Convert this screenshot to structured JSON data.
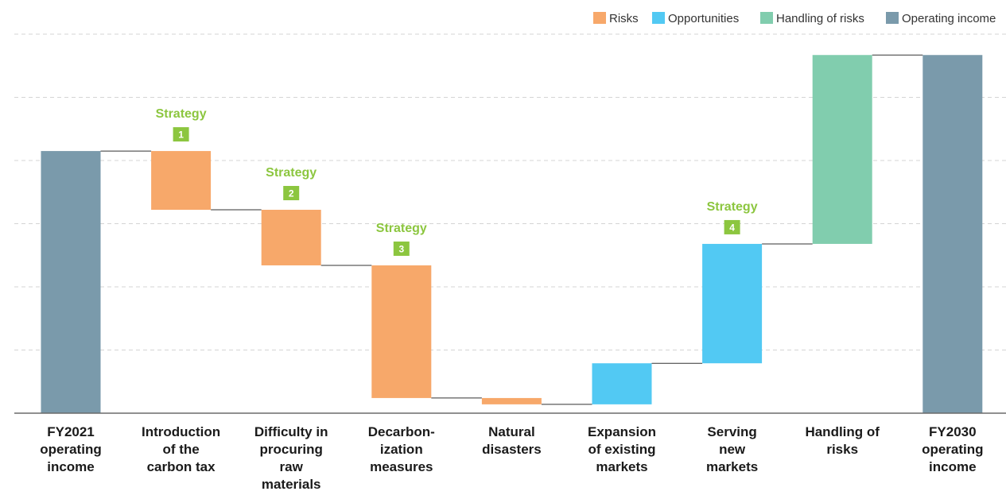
{
  "chart_data": {
    "type": "bar",
    "subtype": "waterfall",
    "categories": [
      [
        "FY2021",
        "operating",
        "income"
      ],
      [
        "Introduction",
        "of the",
        "carbon tax"
      ],
      [
        "Difficulty in",
        "procuring",
        "raw",
        "materials"
      ],
      [
        "Decarbon-",
        "ization",
        "measures"
      ],
      [
        "Natural",
        "disasters"
      ],
      [
        "Expansion",
        "of existing",
        "markets"
      ],
      [
        "Serving",
        "new",
        "markets"
      ],
      [
        "Handling of",
        "risks"
      ],
      [
        "FY2030",
        "operating",
        "income"
      ]
    ],
    "bars": [
      {
        "kind": "Operating income",
        "start": 0,
        "end": 41.5
      },
      {
        "kind": "Risks",
        "start": 41.5,
        "end": 32.2,
        "strategy": "1"
      },
      {
        "kind": "Risks",
        "start": 32.2,
        "end": 23.4,
        "strategy": "2"
      },
      {
        "kind": "Risks",
        "start": 23.4,
        "end": 2.4,
        "strategy": "3"
      },
      {
        "kind": "Risks",
        "start": 2.4,
        "end": 1.4
      },
      {
        "kind": "Opportunities",
        "start": 1.4,
        "end": 7.9
      },
      {
        "kind": "Opportunities",
        "start": 7.9,
        "end": 26.8,
        "strategy": "4"
      },
      {
        "kind": "Handling of risks",
        "start": 26.8,
        "end": 56.7
      },
      {
        "kind": "Operating income",
        "start": 0,
        "end": 56.7
      }
    ],
    "strategy_label": "Strategy",
    "legend": [
      {
        "name": "Risks",
        "color": "#f7a86a"
      },
      {
        "name": "Opportunities",
        "color": "#52c9f3"
      },
      {
        "name": "Handling of risks",
        "color": "#81cdae"
      },
      {
        "name": "Operating income",
        "color": "#7a9aab"
      }
    ],
    "legend_position": "top-right",
    "ylim": [
      0,
      60
    ],
    "grid": true,
    "strategy_color": "#8cc63f"
  }
}
